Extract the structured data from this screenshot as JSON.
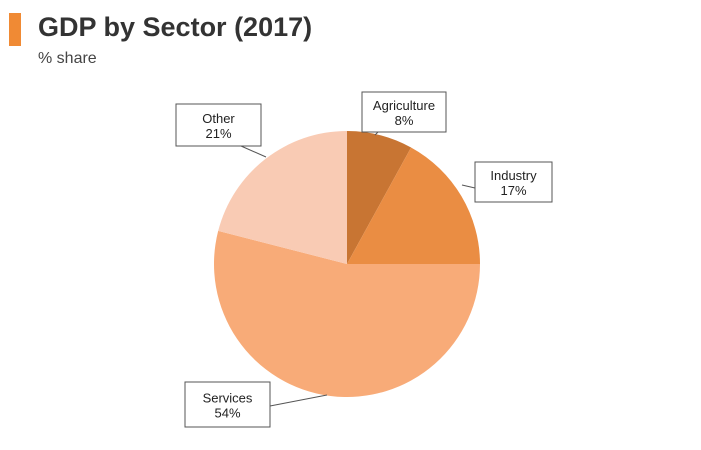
{
  "header": {
    "title": "GDP by Sector (2017)",
    "subtitle": "% share",
    "accent_color": "#f08a34"
  },
  "chart_data": {
    "type": "pie",
    "title": "GDP by Sector (2017)",
    "subtitle": "% share",
    "start_angle_deg": 0,
    "direction": "clockwise",
    "slices": [
      {
        "label": "Agriculture",
        "value": 8,
        "value_label": "8%",
        "color": "#c87533"
      },
      {
        "label": "Industry",
        "value": 17,
        "value_label": "17%",
        "color": "#ea8d43"
      },
      {
        "label": "Services",
        "value": 54,
        "value_label": "54%",
        "color": "#f8ab78"
      },
      {
        "label": "Other",
        "value": 21,
        "value_label": "21%",
        "color": "#f9cbb4"
      }
    ]
  }
}
